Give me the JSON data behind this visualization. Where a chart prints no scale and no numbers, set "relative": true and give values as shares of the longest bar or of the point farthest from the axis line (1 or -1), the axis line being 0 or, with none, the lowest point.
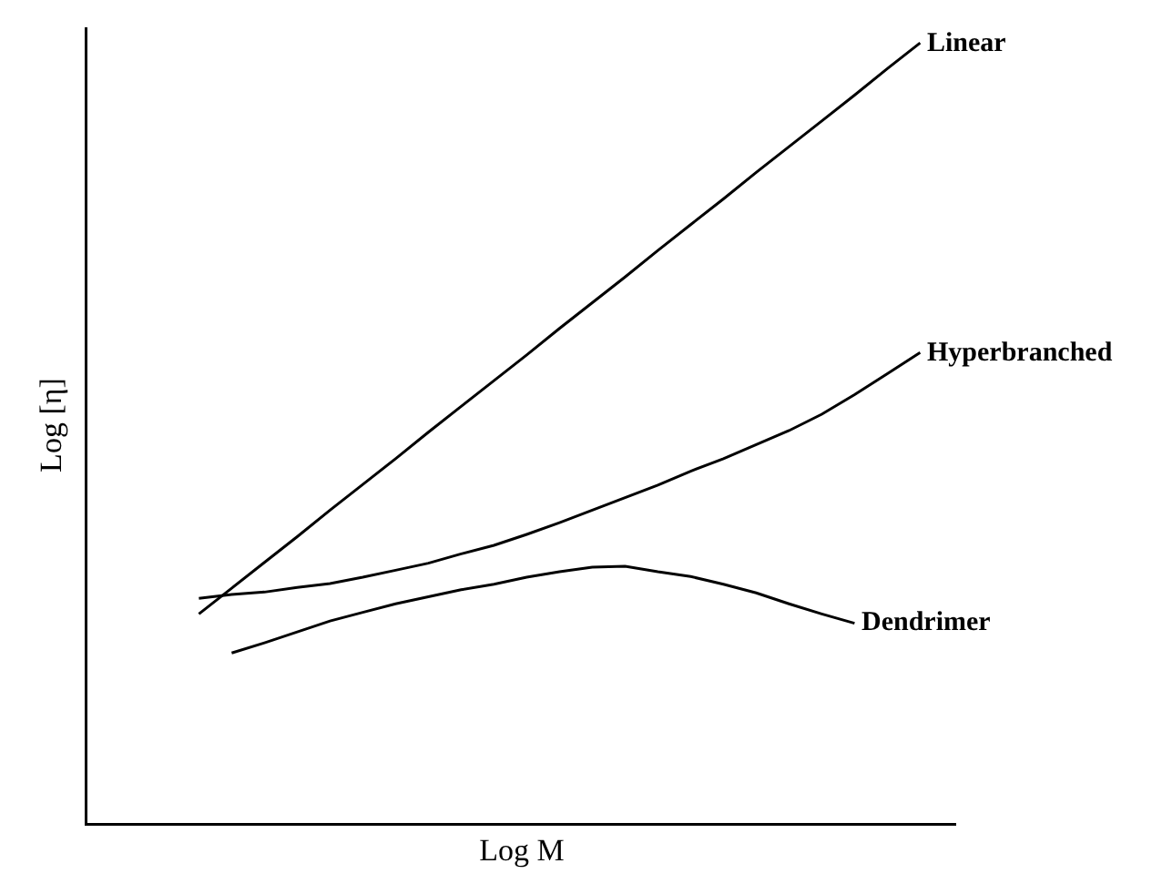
{
  "chart_data": {
    "type": "line",
    "relative": true,
    "xlabel": "Log M",
    "ylabel": "Log [η]",
    "tick_labels": false,
    "categories": [
      null,
      null,
      null,
      null,
      null,
      null,
      null,
      null,
      null,
      null,
      null,
      null,
      null,
      null,
      null,
      null,
      null,
      null,
      null,
      null,
      null,
      null,
      null
    ],
    "grid": false,
    "legend": false,
    "marker": "none",
    "line_style": "solid",
    "series": [
      {
        "name": "Linear",
        "color": "#000000",
        "values": [
          0.268,
          0.301,
          0.334,
          0.367,
          0.401,
          0.434,
          0.467,
          0.501,
          0.534,
          0.567,
          0.6,
          0.634,
          0.667,
          0.7,
          0.734,
          0.767,
          0.8,
          0.834,
          0.867,
          0.9,
          0.933,
          0.967,
          1
        ]
      },
      {
        "name": "Hyperbranched",
        "color": "#000000",
        "values": [
          0.288,
          0.293,
          0.296,
          0.302,
          0.307,
          0.315,
          0.324,
          0.333,
          0.345,
          0.356,
          0.37,
          0.385,
          0.401,
          0.417,
          0.433,
          0.451,
          0.467,
          0.485,
          0.503,
          0.524,
          0.549,
          0.576,
          0.603
        ]
      },
      {
        "name": "Dendrimer",
        "color": "#000000",
        "values": [
          null,
          0.218,
          0.231,
          0.245,
          0.259,
          0.27,
          0.281,
          0.29,
          0.299,
          0.306,
          0.315,
          0.322,
          0.328,
          0.329,
          0.322,
          0.316,
          0.306,
          0.295,
          0.281,
          0.268,
          0.256,
          null,
          null
        ]
      }
    ]
  }
}
